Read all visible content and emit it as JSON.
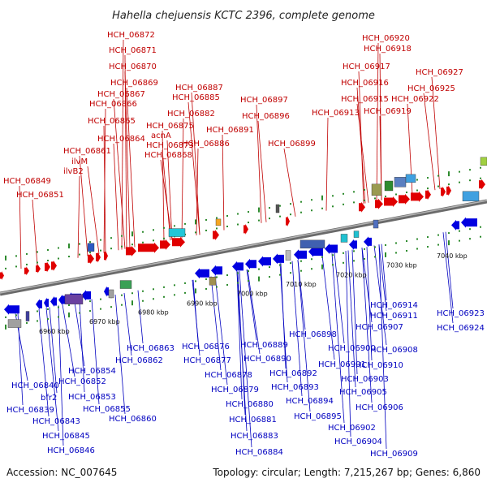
{
  "title": "Hahella chejuensis KCTC 2396, complete genome",
  "footer": {
    "accession": "Accession: NC_007645",
    "summary": "Topology: circular; Length: 7,215,267 bp; Genes: 6,860"
  },
  "scale_labels": [
    "6960 kbp",
    "6970 kbp",
    "6980 kbp",
    "6990 kbp",
    "7000 kbp",
    "7010 kbp",
    "7020 kbp",
    "7030 kbp",
    "7040 kbp"
  ],
  "colors": {
    "forward_gene": "#e00000",
    "reverse_gene": "#0000e0",
    "forward_label": "#c00000",
    "reverse_label": "#0000c0",
    "backbone": "#808080",
    "tick": "#2e8b2e"
  },
  "forward_labels": [
    "HCH_06872",
    "HCH_06871",
    "HCH_06870",
    "HCH_06869",
    "HCH_06867",
    "HCH_06866",
    "HCH_06865",
    "HCH_06864",
    "HCH_06861",
    "ilvM",
    "ilvB2",
    "HCH_06849",
    "HCH_06851",
    "HCH_06887",
    "HCH_06885",
    "HCH_06882",
    "HCH_06875",
    "acnA",
    "HCH_06873",
    "HCH_06868",
    "HCH_06886",
    "HCH_06891",
    "HCH_06897",
    "HCH_06896",
    "HCH_06899",
    "HCH_06920",
    "HCH_06918",
    "HCH_06917",
    "HCH_06916",
    "HCH_06915",
    "HCH_06913",
    "HCH_06919",
    "HCH_06922",
    "HCH_06927",
    "HCH_06925"
  ],
  "reverse_labels": [
    "HCH_06914",
    "HCH_06911",
    "HCH_06907",
    "HCH_06908",
    "HCH_06910",
    "HCH_06898",
    "HCH_06900",
    "HCH_06901",
    "HCH_06903",
    "HCH_06905",
    "HCH_06906",
    "HCH_06902",
    "HCH_06904",
    "HCH_06909",
    "HCH_06889",
    "HCH_06890",
    "HCH_06892",
    "HCH_06893",
    "HCH_06894",
    "HCH_06895",
    "HCH_06876",
    "HCH_06877",
    "HCH_06878",
    "HCH_06879",
    "HCH_06880",
    "HCH_06881",
    "HCH_06883",
    "HCH_06884",
    "HCH_06863",
    "HCH_06862",
    "HCH_06854",
    "HCH_06852",
    "HCH_06853",
    "HCH_06855",
    "HCH_06860",
    "HCH_06840",
    "HCH_06839",
    "bfr2",
    "HCH_06843",
    "HCH_06845",
    "HCH_06846",
    "HCH_06923",
    "HCH_06924"
  ]
}
